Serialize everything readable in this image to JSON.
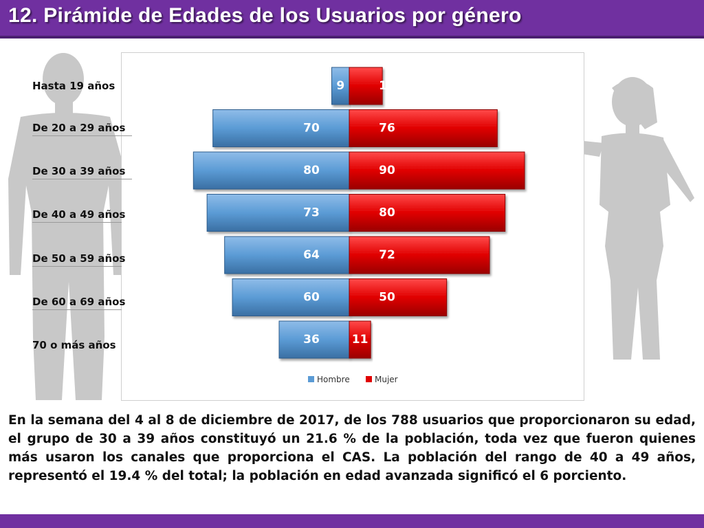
{
  "header": {
    "title": "12. Pirámide de Edades de los Usuarios por género",
    "bar_color": "#7030a0"
  },
  "chart_data": {
    "type": "bar",
    "orientation": "horizontal-diverging",
    "categories": [
      "Hasta 19 años",
      "De 20 a 29 años",
      "De 30 a 39 años",
      "De 40 a 49 años",
      "De 50 a 59 años",
      "De 60 a 69 años",
      "70 o más años"
    ],
    "series": [
      {
        "name": "Hombre",
        "values": [
          9,
          70,
          80,
          73,
          64,
          60,
          36
        ],
        "color": "#5b9bd5"
      },
      {
        "name": "Mujer",
        "values": [
          17,
          76,
          90,
          80,
          72,
          50,
          11
        ],
        "color": "#e00000"
      }
    ],
    "xlim": [
      -90,
      90
    ],
    "legend_position": "bottom",
    "grid": false
  },
  "description": "En la semana del 4 al 8 de diciembre de 2017, de los 788 usuarios que proporcionaron su edad, el grupo de 30 a 39 años constituyó un 21.6 % de la población, toda vez que fueron quienes más usaron los canales que proporciona el CAS. La población del rango de 40 a 49 años, representó el 19.4 % del total; la población en edad avanzada significó el 6 porciento."
}
